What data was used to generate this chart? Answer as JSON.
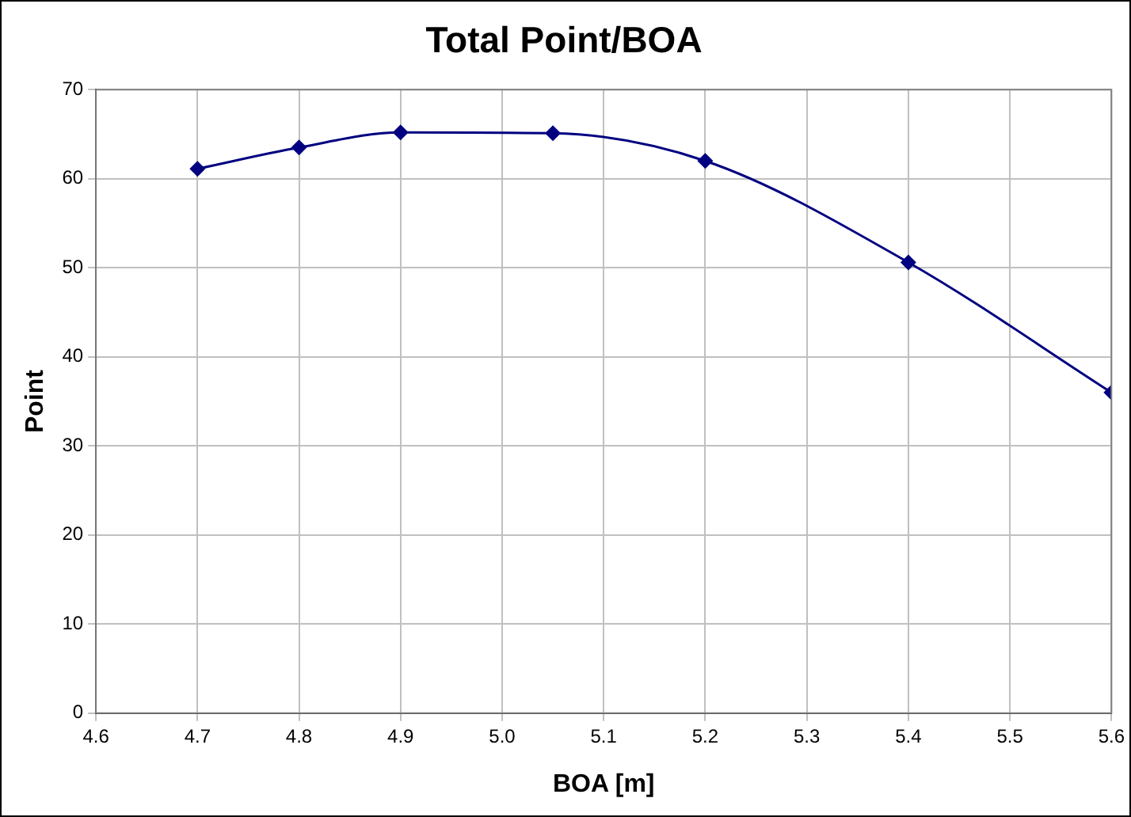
{
  "chart_data": {
    "type": "line",
    "title": "Total Point/BOA",
    "xlabel": "BOA [m]",
    "ylabel": "Point",
    "x": [
      4.7,
      4.8,
      4.9,
      5.05,
      5.2,
      5.4,
      5.6
    ],
    "series": [
      {
        "color": "#000080",
        "values": [
          61.1,
          63.5,
          65.2,
          65.1,
          62,
          50.6,
          36
        ]
      }
    ],
    "xlim": [
      4.6,
      5.6
    ],
    "xticks": [
      {
        "value": 4.6,
        "label": "4.6"
      },
      {
        "value": 4.7,
        "label": "4.7"
      },
      {
        "value": 4.8,
        "label": "4.8"
      },
      {
        "value": 4.9,
        "label": "4.9"
      },
      {
        "value": 5.0,
        "label": "5.0"
      },
      {
        "value": 5.1,
        "label": "5.1"
      },
      {
        "value": 5.2,
        "label": "5.2"
      },
      {
        "value": 5.3,
        "label": "5.3"
      },
      {
        "value": 5.4,
        "label": "5.4"
      },
      {
        "value": 5.5,
        "label": "5.5"
      },
      {
        "value": 5.6,
        "label": "5.6"
      }
    ],
    "ylim": [
      0,
      70
    ],
    "yticks": [
      0,
      10,
      20,
      30,
      40,
      50,
      60,
      70
    ],
    "grid": true,
    "legend": false,
    "marker": "diamond",
    "line_style": "solid"
  }
}
